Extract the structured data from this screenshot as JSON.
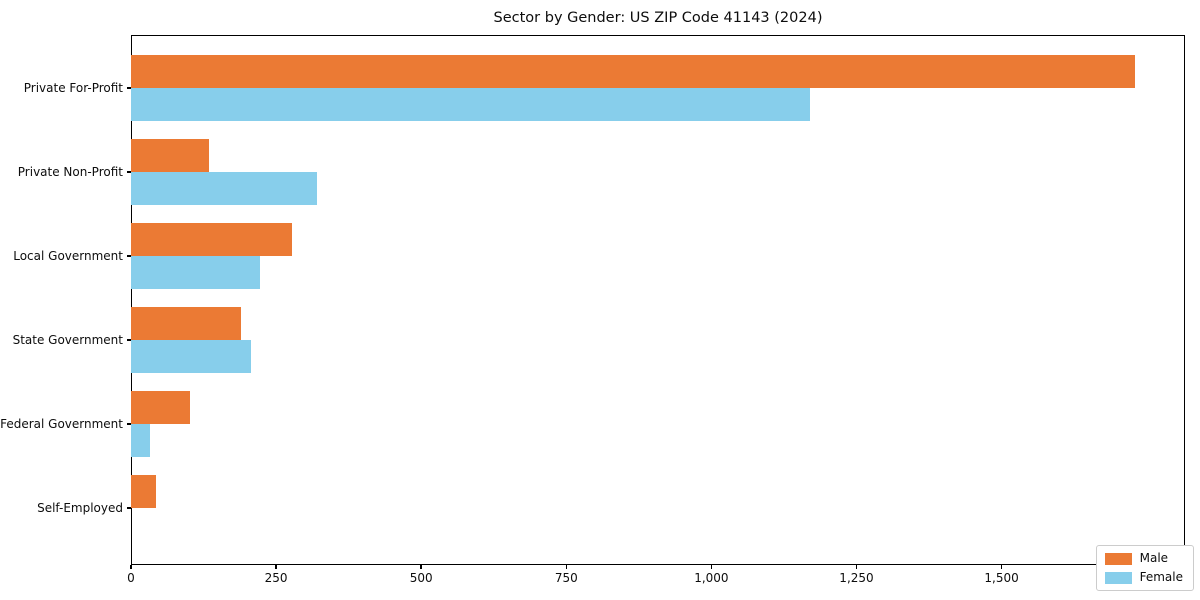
{
  "title": "Sector by Gender: US ZIP Code 41143 (2024)",
  "chart_data": {
    "type": "bar",
    "orientation": "horizontal",
    "title": "Sector by Gender: US ZIP Code 41143 (2024)",
    "xlabel": "",
    "ylabel": "",
    "categories": [
      "Private For-Profit",
      "Private Non-Profit",
      "Local Government",
      "State Government",
      "Federal Government",
      "Self-Employed"
    ],
    "series": [
      {
        "name": "Male",
        "color": "#EB7A34",
        "values": [
          1730,
          135,
          278,
          190,
          102,
          43
        ]
      },
      {
        "name": "Female",
        "color": "#87CEEB",
        "values": [
          1170,
          320,
          222,
          207,
          33,
          0
        ]
      }
    ],
    "xlim": [
      0,
      1816
    ],
    "xticks": [
      0,
      250,
      500,
      750,
      1000,
      1250,
      1500,
      1750
    ],
    "xtick_labels": [
      "0",
      "250",
      "500",
      "750",
      "1,000",
      "1,250",
      "1,500",
      "1,750"
    ],
    "grid": false,
    "legend_position": "lower-right"
  },
  "legend": {
    "items": [
      {
        "label": "Male",
        "color": "#EB7A34"
      },
      {
        "label": "Female",
        "color": "#87CEEB"
      }
    ]
  }
}
